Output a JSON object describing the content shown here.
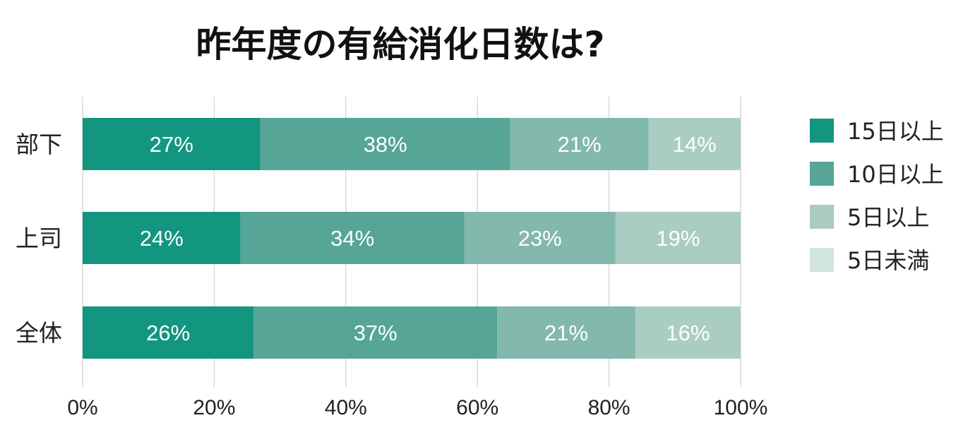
{
  "chart_data": {
    "type": "bar",
    "orientation": "horizontal",
    "stacked": true,
    "title": "昨年度の有給消化日数は?",
    "categories": [
      "部下",
      "上司",
      "全体"
    ],
    "series": [
      {
        "name": "15日以上",
        "color": "#12967f",
        "values": [
          27,
          24,
          26
        ],
        "labels": [
          "27%",
          "24%",
          "26%"
        ]
      },
      {
        "name": "10日以上",
        "color": "#56a597",
        "values": [
          38,
          34,
          37
        ],
        "labels": [
          "38%",
          "34%",
          "37%"
        ]
      },
      {
        "name": "5日以上",
        "color": "#83b8ac",
        "values": [
          21,
          23,
          21
        ],
        "labels": [
          "21%",
          "23%",
          "21%"
        ]
      },
      {
        "name": "5日未満",
        "color": "#aacdc3",
        "values": [
          14,
          19,
          16
        ],
        "labels": [
          "14%",
          "19%",
          "16%"
        ]
      }
    ],
    "legend": {
      "position": "right",
      "items": [
        {
          "label": "15日以上",
          "color": "#12967f"
        },
        {
          "label": "10日以上",
          "color": "#56a597"
        },
        {
          "label": "5日以上",
          "color": "#a9cbc2"
        },
        {
          "label": "5日未満",
          "color": "#d3e5df"
        }
      ]
    },
    "x_axis": {
      "min": 0,
      "max": 100,
      "ticks": [
        0,
        20,
        40,
        60,
        80,
        100
      ],
      "tick_labels": [
        "0%",
        "20%",
        "40%",
        "60%",
        "80%",
        "100%"
      ]
    },
    "xlabel": "",
    "ylabel": "",
    "grid": true
  }
}
